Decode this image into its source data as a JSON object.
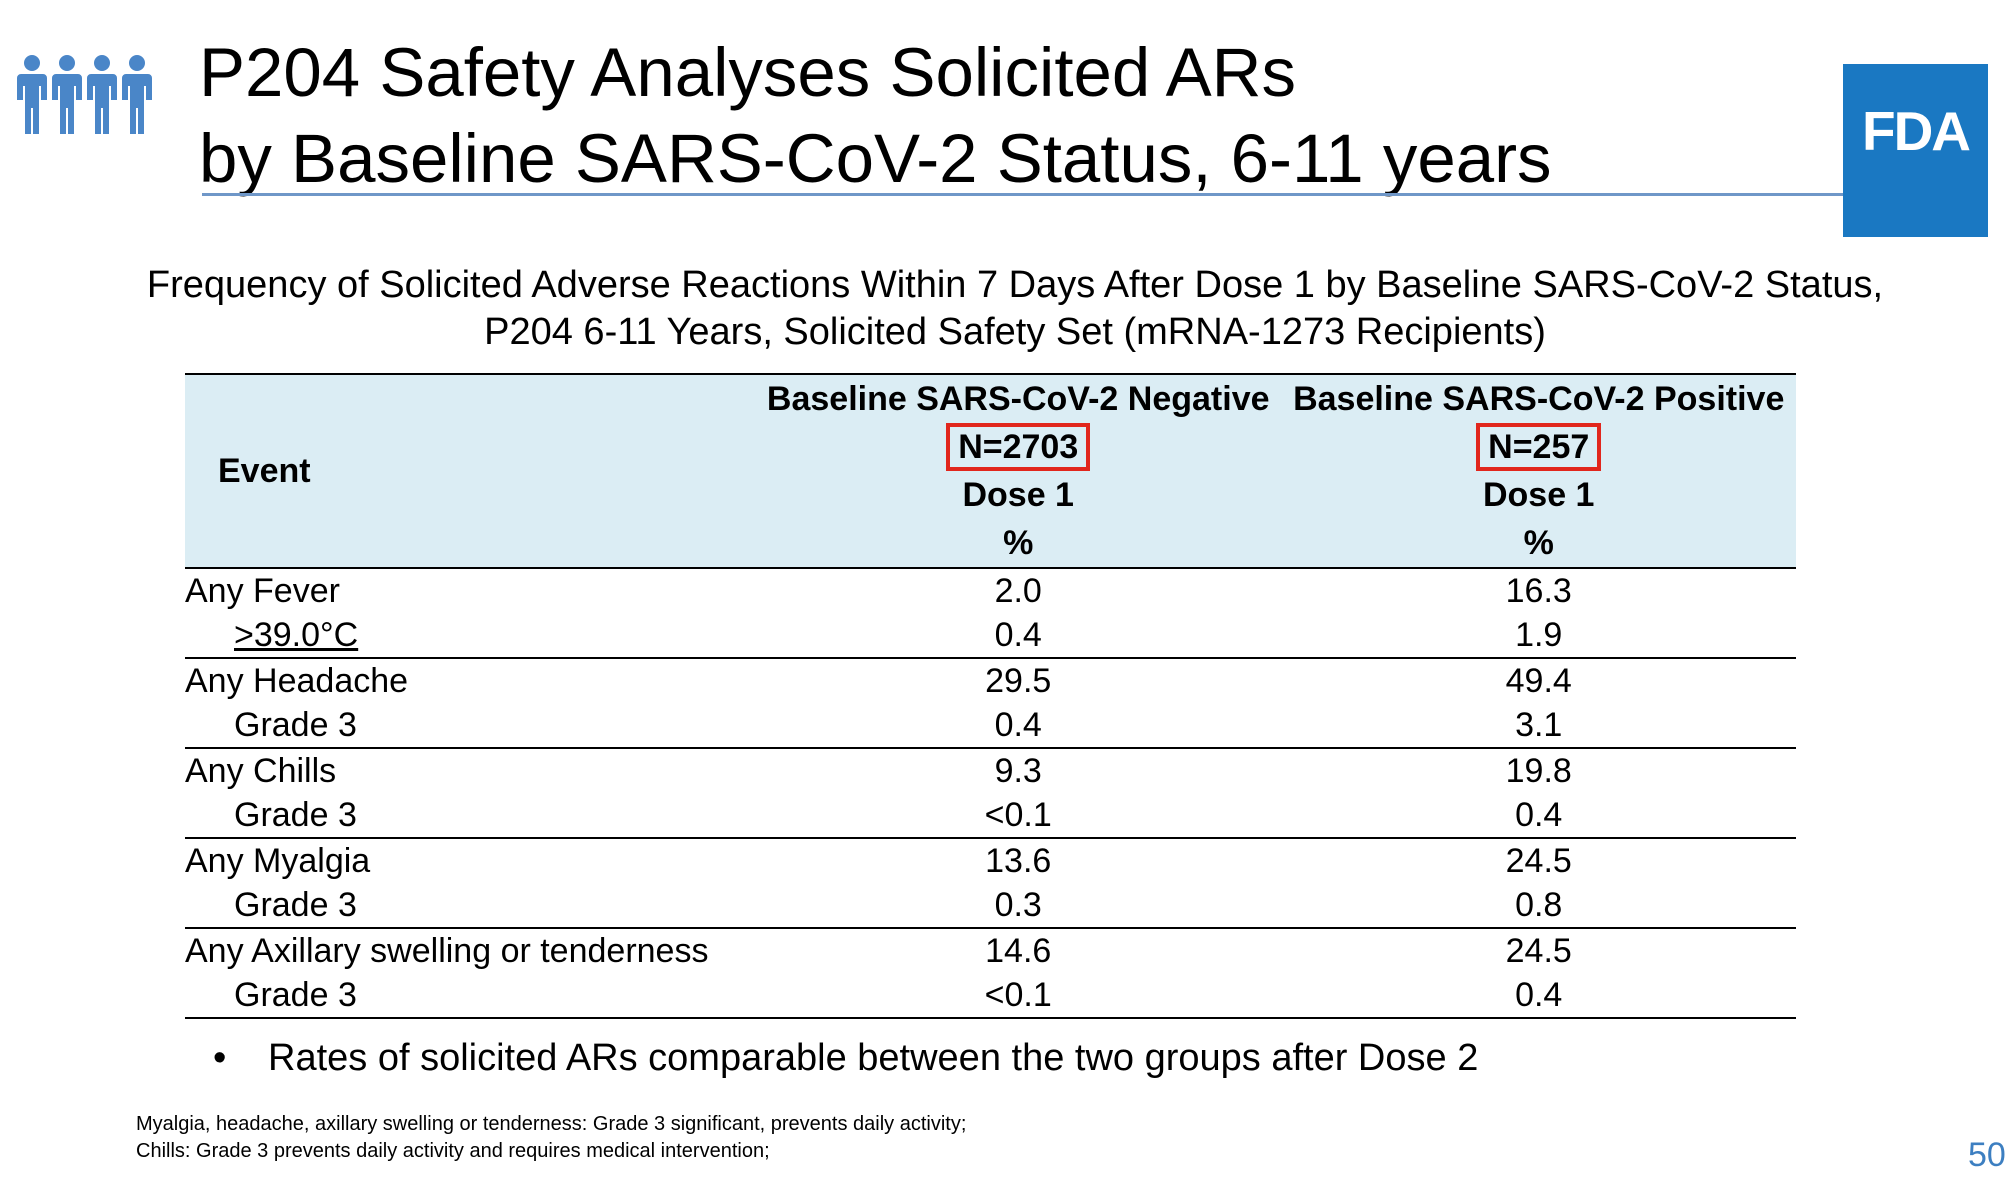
{
  "header": {
    "title_line1": "P204 Safety Analyses Solicited ARs",
    "title_line2": "by Baseline SARS-CoV-2 Status, 6-11 years",
    "logo_text": "FDA"
  },
  "caption": {
    "line1": "Frequency of Solicited Adverse Reactions Within 7 Days After Dose 1 by Baseline SARS-CoV-2 Status,",
    "line2": "P204 6-11 Years, Solicited Safety Set (mRNA-1273 Recipients)"
  },
  "table": {
    "event_header": "Event",
    "columns": [
      {
        "title": "Baseline SARS-CoV-2 Negative",
        "n": "N=2703",
        "dose": "Dose 1",
        "unit": "%"
      },
      {
        "title": "Baseline SARS-CoV-2 Positive",
        "n": "N=257",
        "dose": "Dose 1",
        "unit": "%"
      }
    ],
    "rows": [
      {
        "event": "Any Fever",
        "neg": "2.0",
        "pos": "16.3"
      },
      {
        "event": ">39.0°C",
        "neg": "0.4",
        "pos": "1.9"
      },
      {
        "event": "Any Headache",
        "neg": "29.5",
        "pos": "49.4"
      },
      {
        "event": "Grade 3",
        "neg": "0.4",
        "pos": "3.1"
      },
      {
        "event": "Any Chills",
        "neg": "9.3",
        "pos": "19.8"
      },
      {
        "event": "Grade 3",
        "neg": "<0.1",
        "pos": "0.4"
      },
      {
        "event": "Any Myalgia",
        "neg": "13.6",
        "pos": "24.5"
      },
      {
        "event": "Grade 3",
        "neg": "0.3",
        "pos": "0.8"
      },
      {
        "event": "Any Axillary swelling or tenderness",
        "neg": "14.6",
        "pos": "24.5"
      },
      {
        "event": "Grade 3",
        "neg": "<0.1",
        "pos": "0.4"
      }
    ]
  },
  "bullet": "Rates of solicited ARs comparable between the two groups after Dose 2",
  "footnotes": {
    "line1": "Myalgia, headache, axillary swelling or tenderness: Grade 3 significant, prevents  daily  activity;",
    "line2": "Chills: Grade 3 prevents daily activity and requires medical intervention;"
  },
  "page_number": "50",
  "colors": {
    "accent": "#1a78c2",
    "rule": "#6f97c8",
    "header_fill": "#dbedf4",
    "highlight": "#e1261c",
    "page_number": "#3d7fc1"
  },
  "icons": [
    "people-group-icon"
  ]
}
